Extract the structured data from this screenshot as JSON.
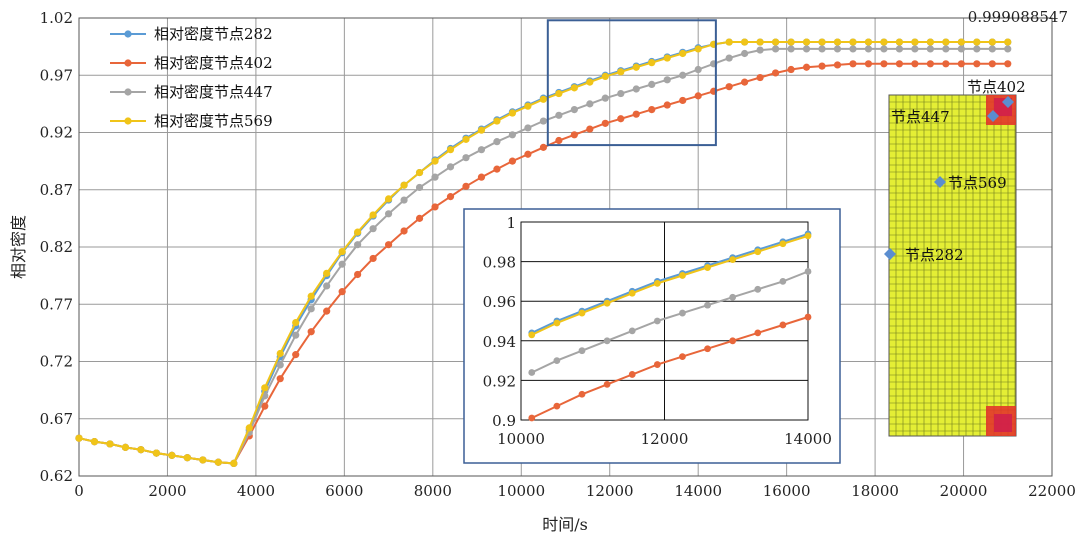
{
  "chart_data": {
    "type": "line",
    "xlabel": "时间/s",
    "ylabel": "相对密度",
    "xlim": [
      0,
      22000
    ],
    "ylim": [
      0.62,
      1.02
    ],
    "x_ticks": [
      "0",
      "2000",
      "4000",
      "6000",
      "8000",
      "10000",
      "12000",
      "14000",
      "16000",
      "18000",
      "20000",
      "22000"
    ],
    "y_ticks": [
      "0.62",
      "0.67",
      "0.72",
      "0.77",
      "0.82",
      "0.87",
      "0.92",
      "0.97",
      "1.02"
    ],
    "grid": true,
    "legend_placement": "top-left",
    "annotation": "0.999088547",
    "series": [
      {
        "name": "相对密度节点282",
        "color": "#5b9bd5",
        "points": [
          [
            0,
            0.653
          ],
          [
            350,
            0.65
          ],
          [
            700,
            0.648
          ],
          [
            1050,
            0.645
          ],
          [
            1400,
            0.643
          ],
          [
            1750,
            0.64
          ],
          [
            2100,
            0.638
          ],
          [
            2450,
            0.636
          ],
          [
            2800,
            0.634
          ],
          [
            3150,
            0.632
          ],
          [
            3500,
            0.631
          ],
          [
            3850,
            0.66
          ],
          [
            4200,
            0.694
          ],
          [
            4550,
            0.724
          ],
          [
            4900,
            0.751
          ],
          [
            5250,
            0.774
          ],
          [
            5600,
            0.795
          ],
          [
            5950,
            0.815
          ],
          [
            6300,
            0.832
          ],
          [
            6650,
            0.847
          ],
          [
            7000,
            0.861
          ],
          [
            7350,
            0.874
          ],
          [
            7700,
            0.885
          ],
          [
            8050,
            0.896
          ],
          [
            8400,
            0.906
          ],
          [
            8750,
            0.915
          ],
          [
            9100,
            0.923
          ],
          [
            9450,
            0.931
          ],
          [
            9800,
            0.938
          ],
          [
            10150,
            0.944
          ],
          [
            10500,
            0.95
          ],
          [
            10850,
            0.955
          ],
          [
            11200,
            0.96
          ],
          [
            11550,
            0.965
          ],
          [
            11900,
            0.97
          ],
          [
            12250,
            0.974
          ],
          [
            12600,
            0.978
          ],
          [
            12950,
            0.982
          ],
          [
            13300,
            0.986
          ],
          [
            13650,
            0.99
          ],
          [
            14000,
            0.994
          ],
          [
            14350,
            0.997
          ],
          [
            14700,
            0.999
          ],
          [
            15050,
            0.999
          ],
          [
            15400,
            0.999
          ],
          [
            15750,
            0.999
          ],
          [
            16100,
            0.999
          ],
          [
            16450,
            0.999
          ],
          [
            16800,
            0.999
          ],
          [
            17150,
            0.999
          ],
          [
            17500,
            0.999
          ],
          [
            17850,
            0.999
          ],
          [
            18200,
            0.999
          ],
          [
            18550,
            0.999
          ],
          [
            18900,
            0.999
          ],
          [
            19250,
            0.999
          ],
          [
            19600,
            0.999
          ],
          [
            19950,
            0.999
          ],
          [
            20300,
            0.999
          ],
          [
            20650,
            0.999
          ],
          [
            21000,
            0.999
          ]
        ]
      },
      {
        "name": "相对密度节点402",
        "color": "#e8663a",
        "points": [
          [
            0,
            0.653
          ],
          [
            350,
            0.65
          ],
          [
            700,
            0.648
          ],
          [
            1050,
            0.645
          ],
          [
            1400,
            0.643
          ],
          [
            1750,
            0.64
          ],
          [
            2100,
            0.638
          ],
          [
            2450,
            0.636
          ],
          [
            2800,
            0.634
          ],
          [
            3150,
            0.632
          ],
          [
            3500,
            0.631
          ],
          [
            3850,
            0.655
          ],
          [
            4200,
            0.681
          ],
          [
            4550,
            0.705
          ],
          [
            4900,
            0.726
          ],
          [
            5250,
            0.746
          ],
          [
            5600,
            0.764
          ],
          [
            5950,
            0.781
          ],
          [
            6300,
            0.796
          ],
          [
            6650,
            0.81
          ],
          [
            7000,
            0.822
          ],
          [
            7350,
            0.834
          ],
          [
            7700,
            0.845
          ],
          [
            8050,
            0.855
          ],
          [
            8400,
            0.864
          ],
          [
            8750,
            0.873
          ],
          [
            9100,
            0.881
          ],
          [
            9450,
            0.888
          ],
          [
            9800,
            0.895
          ],
          [
            10150,
            0.901
          ],
          [
            10500,
            0.907
          ],
          [
            10850,
            0.913
          ],
          [
            11200,
            0.918
          ],
          [
            11550,
            0.923
          ],
          [
            11900,
            0.928
          ],
          [
            12250,
            0.932
          ],
          [
            12600,
            0.936
          ],
          [
            12950,
            0.94
          ],
          [
            13300,
            0.944
          ],
          [
            13650,
            0.948
          ],
          [
            14000,
            0.952
          ],
          [
            14350,
            0.956
          ],
          [
            14700,
            0.96
          ],
          [
            15050,
            0.964
          ],
          [
            15400,
            0.968
          ],
          [
            15750,
            0.972
          ],
          [
            16100,
            0.975
          ],
          [
            16450,
            0.977
          ],
          [
            16800,
            0.978
          ],
          [
            17150,
            0.979
          ],
          [
            17500,
            0.98
          ],
          [
            17850,
            0.98
          ],
          [
            18200,
            0.98
          ],
          [
            18550,
            0.98
          ],
          [
            18900,
            0.98
          ],
          [
            19250,
            0.98
          ],
          [
            19600,
            0.98
          ],
          [
            19950,
            0.98
          ],
          [
            20300,
            0.98
          ],
          [
            20650,
            0.98
          ],
          [
            21000,
            0.98
          ]
        ]
      },
      {
        "name": "相对密度节点447",
        "color": "#a5a5a5",
        "points": [
          [
            0,
            0.653
          ],
          [
            350,
            0.65
          ],
          [
            700,
            0.648
          ],
          [
            1050,
            0.645
          ],
          [
            1400,
            0.643
          ],
          [
            1750,
            0.64
          ],
          [
            2100,
            0.638
          ],
          [
            2450,
            0.636
          ],
          [
            2800,
            0.634
          ],
          [
            3150,
            0.632
          ],
          [
            3500,
            0.631
          ],
          [
            3850,
            0.658
          ],
          [
            4200,
            0.69
          ],
          [
            4550,
            0.717
          ],
          [
            4900,
            0.743
          ],
          [
            5250,
            0.766
          ],
          [
            5600,
            0.786
          ],
          [
            5950,
            0.805
          ],
          [
            6300,
            0.822
          ],
          [
            6650,
            0.836
          ],
          [
            7000,
            0.849
          ],
          [
            7350,
            0.861
          ],
          [
            7700,
            0.872
          ],
          [
            8050,
            0.881
          ],
          [
            8400,
            0.89
          ],
          [
            8750,
            0.898
          ],
          [
            9100,
            0.905
          ],
          [
            9450,
            0.912
          ],
          [
            9800,
            0.918
          ],
          [
            10150,
            0.924
          ],
          [
            10500,
            0.93
          ],
          [
            10850,
            0.935
          ],
          [
            11200,
            0.94
          ],
          [
            11550,
            0.945
          ],
          [
            11900,
            0.95
          ],
          [
            12250,
            0.954
          ],
          [
            12600,
            0.958
          ],
          [
            12950,
            0.962
          ],
          [
            13300,
            0.966
          ],
          [
            13650,
            0.97
          ],
          [
            14000,
            0.975
          ],
          [
            14350,
            0.98
          ],
          [
            14700,
            0.985
          ],
          [
            15050,
            0.989
          ],
          [
            15400,
            0.992
          ],
          [
            15750,
            0.993
          ],
          [
            16100,
            0.993
          ],
          [
            16450,
            0.993
          ],
          [
            16800,
            0.993
          ],
          [
            17150,
            0.993
          ],
          [
            17500,
            0.993
          ],
          [
            17850,
            0.993
          ],
          [
            18200,
            0.993
          ],
          [
            18550,
            0.993
          ],
          [
            18900,
            0.993
          ],
          [
            19250,
            0.993
          ],
          [
            19600,
            0.993
          ],
          [
            19950,
            0.993
          ],
          [
            20300,
            0.993
          ],
          [
            20650,
            0.993
          ],
          [
            21000,
            0.993
          ]
        ]
      },
      {
        "name": "相对密度节点569",
        "color": "#f0c419",
        "points": [
          [
            0,
            0.653
          ],
          [
            350,
            0.65
          ],
          [
            700,
            0.648
          ],
          [
            1050,
            0.645
          ],
          [
            1400,
            0.643
          ],
          [
            1750,
            0.64
          ],
          [
            2100,
            0.638
          ],
          [
            2450,
            0.636
          ],
          [
            2800,
            0.634
          ],
          [
            3150,
            0.632
          ],
          [
            3500,
            0.631
          ],
          [
            3850,
            0.662
          ],
          [
            4200,
            0.697
          ],
          [
            4550,
            0.727
          ],
          [
            4900,
            0.754
          ],
          [
            5250,
            0.777
          ],
          [
            5600,
            0.797
          ],
          [
            5950,
            0.816
          ],
          [
            6300,
            0.833
          ],
          [
            6650,
            0.848
          ],
          [
            7000,
            0.862
          ],
          [
            7350,
            0.874
          ],
          [
            7700,
            0.885
          ],
          [
            8050,
            0.895
          ],
          [
            8400,
            0.905
          ],
          [
            8750,
            0.914
          ],
          [
            9100,
            0.922
          ],
          [
            9450,
            0.93
          ],
          [
            9800,
            0.937
          ],
          [
            10150,
            0.943
          ],
          [
            10500,
            0.949
          ],
          [
            10850,
            0.954
          ],
          [
            11200,
            0.959
          ],
          [
            11550,
            0.964
          ],
          [
            11900,
            0.969
          ],
          [
            12250,
            0.973
          ],
          [
            12600,
            0.977
          ],
          [
            12950,
            0.981
          ],
          [
            13300,
            0.985
          ],
          [
            13650,
            0.989
          ],
          [
            14000,
            0.993
          ],
          [
            14350,
            0.997
          ],
          [
            14700,
            0.999
          ],
          [
            15050,
            0.999
          ],
          [
            15400,
            0.999
          ],
          [
            15750,
            0.999
          ],
          [
            16100,
            0.999
          ],
          [
            16450,
            0.999
          ],
          [
            16800,
            0.999
          ],
          [
            17150,
            0.999
          ],
          [
            17500,
            0.999
          ],
          [
            17850,
            0.999
          ],
          [
            18200,
            0.999
          ],
          [
            18550,
            0.999
          ],
          [
            18900,
            0.999
          ],
          [
            19250,
            0.999
          ],
          [
            19600,
            0.999
          ],
          [
            19950,
            0.999
          ],
          [
            20300,
            0.999
          ],
          [
            20650,
            0.999
          ],
          [
            21000,
            0.999
          ]
        ]
      }
    ],
    "inset": {
      "xlim": [
        10000,
        14000
      ],
      "ylim": [
        0.9,
        1.0
      ],
      "x_ticks": [
        "10000",
        "12000",
        "14000"
      ],
      "y_ticks": [
        "0.9",
        "0.92",
        "0.94",
        "0.96",
        "0.98",
        "1"
      ],
      "zoom_region": {
        "x": [
          10600,
          14400
        ],
        "y": [
          0.909,
          1.018
        ]
      }
    },
    "mesh_inset": {
      "labels": [
        "节点402",
        "节点447",
        "节点569",
        "节点282"
      ]
    }
  }
}
